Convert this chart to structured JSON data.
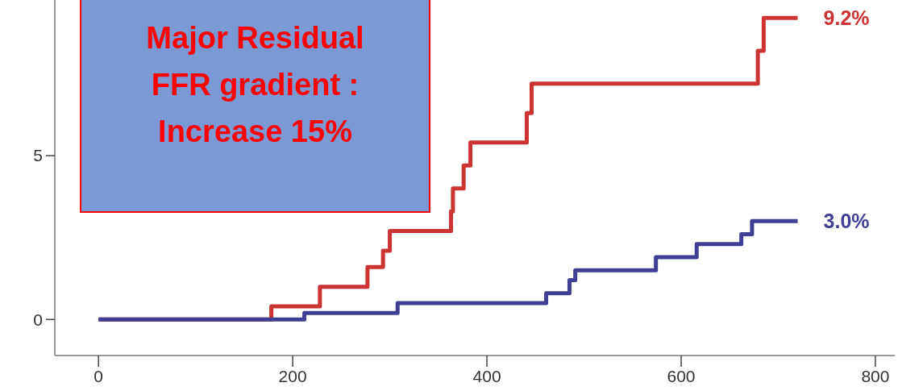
{
  "chart_data": {
    "type": "step",
    "xlim": [
      -45,
      820
    ],
    "ylim": [
      -1.1,
      9.75
    ],
    "xticks": [
      0,
      200,
      400,
      600,
      800
    ],
    "yticks": [
      0,
      5
    ],
    "grid": false,
    "line_style": "solid",
    "marker": "none",
    "series": [
      {
        "color": "#cc3333",
        "x": [
          0,
          178,
          228,
          277,
          293,
          300,
          363,
          365,
          376,
          383,
          441,
          446,
          679,
          685,
          720
        ],
        "values": [
          0,
          0.4,
          1.0,
          1.6,
          2.1,
          2.7,
          3.3,
          4.0,
          4.7,
          5.4,
          6.3,
          7.2,
          8.2,
          9.2,
          9.2
        ]
      },
      {
        "color": "#3f3f95",
        "x": [
          0,
          212,
          308,
          461,
          485,
          491,
          574,
          616,
          662,
          673,
          720
        ],
        "values": [
          0,
          0.2,
          0.5,
          0.8,
          1.2,
          1.5,
          1.9,
          2.3,
          2.6,
          3.0,
          3.0
        ]
      }
    ],
    "annotations": [
      "Major Residual FFR gradient : Increase 15%",
      {
        "text": "9.2%",
        "x": 720,
        "y": 9.2
      },
      {
        "text": "3.0%",
        "x": 720,
        "y": 3.0
      }
    ]
  }
}
